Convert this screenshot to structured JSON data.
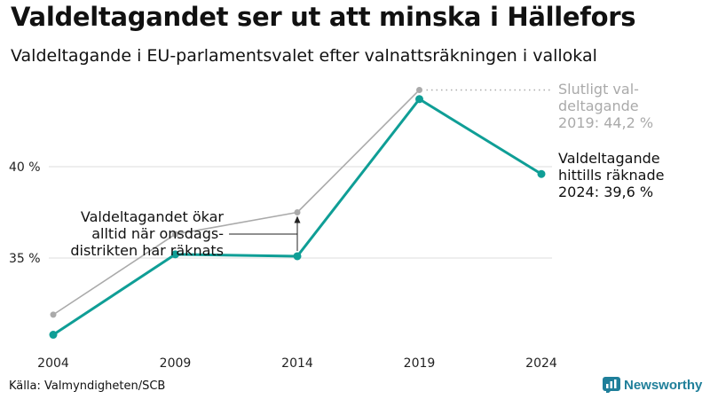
{
  "header": {
    "title": "Valdeltagandet ser ut att minska i Hällefors",
    "subtitle": "Valdeltagande i EU-parlamentsvalet efter valnattsräkningen i vallokal"
  },
  "chart_data": {
    "type": "line",
    "x": [
      "2004",
      "2009",
      "2014",
      "2019",
      "2024"
    ],
    "ylim": [
      27,
      46.5
    ],
    "yticks": [
      {
        "value": 35,
        "label": "35 %"
      },
      {
        "value": 40,
        "label": "40 %"
      }
    ],
    "series": [
      {
        "name": "Slutligt valdeltagande",
        "color": "#aaaaaa",
        "values": [
          31.9,
          36.3,
          37.5,
          44.2,
          null
        ]
      },
      {
        "name": "Valdeltagande valnattsräkning",
        "color": "#0f9e96",
        "values": [
          30.8,
          35.2,
          35.1,
          43.7,
          39.6
        ]
      }
    ],
    "annotations": {
      "final_label": [
        "Slutligt val-",
        "deltagande",
        "2019: 44,2 %"
      ],
      "current_label": [
        "Valdeltagande",
        "hittills räknade",
        "2024: 39,6 %"
      ],
      "note": [
        "Valdeltagandet ökar",
        "alltid när onsdags-",
        "distrikten har räknats"
      ]
    }
  },
  "footer": {
    "source": "Källa: Valmyndigheten/SCB",
    "brand": "Newsworthy"
  },
  "colors": {
    "teal": "#0f9e96",
    "gray": "#aaaaaa",
    "brand": "#1f7f9a"
  }
}
